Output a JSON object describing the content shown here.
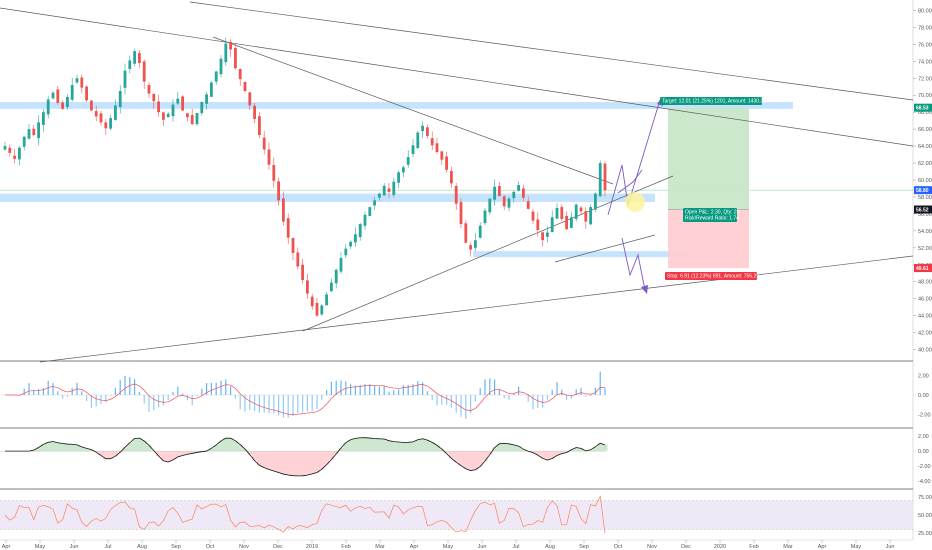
{
  "chart_data": [
    {
      "type": "candlestick",
      "price_axis": {
        "ticks": [
          "80.00",
          "78.00",
          "76.00",
          "74.00",
          "72.00",
          "70.00",
          "68.00",
          "66.00",
          "64.00",
          "62.00",
          "60.00",
          "58.00",
          "56.00",
          "54.00",
          "52.00",
          "50.00",
          "48.00",
          "46.00",
          "44.00",
          "42.00",
          "40.00"
        ],
        "range": [
          39,
          81
        ]
      },
      "time_axis": {
        "labels": [
          "Apr",
          "May",
          "Jun",
          "Jul",
          "Aug",
          "Sep",
          "Oct",
          "Nov",
          "Dec",
          "2019",
          "Feb",
          "Mar",
          "Apr",
          "May",
          "Jun",
          "Jul",
          "Aug",
          "Sep",
          "Oct",
          "Nov",
          "Dec",
          "2020",
          "Feb",
          "Mar",
          "Apr",
          "May",
          "Jun"
        ]
      },
      "price_markers": [
        {
          "value": "68.53",
          "color": "#089981"
        },
        {
          "value": "58.80",
          "color": "#2962ff"
        },
        {
          "value": "56.52",
          "color": "#131722"
        },
        {
          "value": "49.61",
          "color": "#f23645"
        }
      ],
      "support_resistance_zones": [
        {
          "low": 68.4,
          "high": 69.2
        },
        {
          "low": 57.4,
          "high": 58.4
        },
        {
          "low": 50.9,
          "high": 51.6
        }
      ],
      "position": {
        "target_label": "Target: 12.01 (21.25%) 1201, Amount: 1430.36",
        "open_label_line1": "Open P&L: 2.30, Qty: 26",
        "open_label_line2": "Risk/Reward Ratio: 1.74",
        "stop_label": "Stop: 6.91 (12.23%) 691, Amount: 755.29",
        "target_price": 68.53,
        "entry_price": 56.52,
        "stop_price": 49.61
      },
      "series": [
        {
          "name": "",
          "close": [
            64,
            63.2,
            62.5,
            63.8,
            65.1,
            66,
            65.3,
            66.8,
            68,
            69.5,
            70.3,
            69.1,
            68.4,
            69.8,
            71.2,
            72,
            70.9,
            69.4,
            68.2,
            67.5,
            66.8,
            66.1,
            67.3,
            68.8,
            70.5,
            72.9,
            74.1,
            75.2,
            73.8,
            71.6,
            70.2,
            69.3,
            68,
            67.1,
            67.8,
            68.9,
            69.6,
            68.2,
            67.4,
            66.6,
            67.9,
            69.2,
            70.1,
            71.5,
            72.8,
            74.3,
            76.1,
            75.4,
            73.2,
            71.9,
            70.5,
            68.8,
            67.2,
            65.3,
            63.6,
            61.8,
            59.9,
            57.6,
            55.1,
            53.2,
            51.4,
            49.8,
            48.2,
            46.6,
            45.1,
            44,
            45.2,
            46.5,
            47.9,
            49.4,
            50.8,
            51.9,
            52.7,
            53.6,
            54.8,
            55.9,
            56.8,
            57.6,
            58.4,
            59.3,
            58.6,
            59.8,
            60.9,
            61.5,
            62.7,
            64.1,
            65.6,
            66.4,
            65.2,
            64.1,
            63.3,
            62.4,
            61.2,
            59.6,
            57.2,
            54.8,
            52.6,
            51.8,
            52.9,
            54.6,
            56.4,
            57.8,
            59.2,
            58.1,
            56.9,
            57.8,
            58.6,
            59.4,
            57.9,
            56.6,
            55.2,
            54.1,
            52.9,
            53.8,
            55.6,
            56.7,
            55.4,
            54.2,
            55.6,
            57.1,
            56.3,
            55.1,
            56.8,
            58.4,
            62,
            58.8
          ]
        },
        {
          "name": "",
          "values": []
        }
      ]
    },
    {
      "type": "bar",
      "panel": "histogram-with-signal",
      "ticks": [
        "2.00",
        "0.00",
        "-2.00"
      ],
      "range": [
        -3.2,
        3.2
      ]
    },
    {
      "type": "area",
      "panel": "oscillator",
      "ticks": [
        "2.00",
        "0.00",
        "-2.00",
        "-4.00"
      ],
      "range": [
        -4.8,
        2.7
      ]
    },
    {
      "type": "line",
      "panel": "rsi",
      "ticks": [
        "75.00",
        "50.00",
        "25.00"
      ],
      "range": [
        18,
        82
      ]
    }
  ]
}
